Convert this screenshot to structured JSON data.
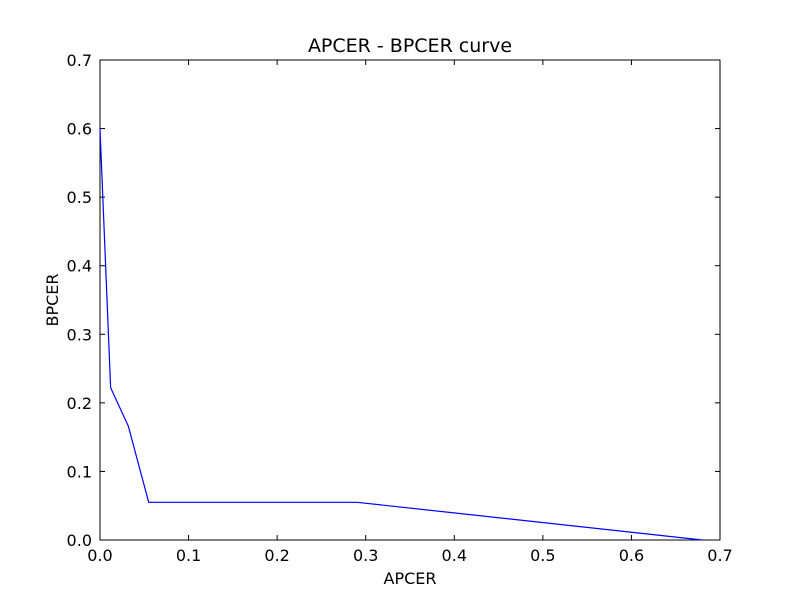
{
  "chart_data": {
    "type": "line",
    "title": "APCER - BPCER curve",
    "xlabel": "APCER",
    "ylabel": "BPCER",
    "xlim": [
      0.0,
      0.7
    ],
    "ylim": [
      0.0,
      0.7
    ],
    "xticks": [
      "0.0",
      "0.1",
      "0.2",
      "0.3",
      "0.4",
      "0.5",
      "0.6",
      "0.7"
    ],
    "yticks": [
      "0.0",
      "0.1",
      "0.2",
      "0.3",
      "0.4",
      "0.5",
      "0.6",
      "0.7"
    ],
    "grid": false,
    "series": [
      {
        "color": "#0000ff",
        "x": [
          0.0,
          0.012,
          0.032,
          0.055,
          0.29,
          0.68
        ],
        "y": [
          0.6,
          0.222,
          0.166,
          0.055,
          0.055,
          0.0
        ]
      }
    ]
  }
}
